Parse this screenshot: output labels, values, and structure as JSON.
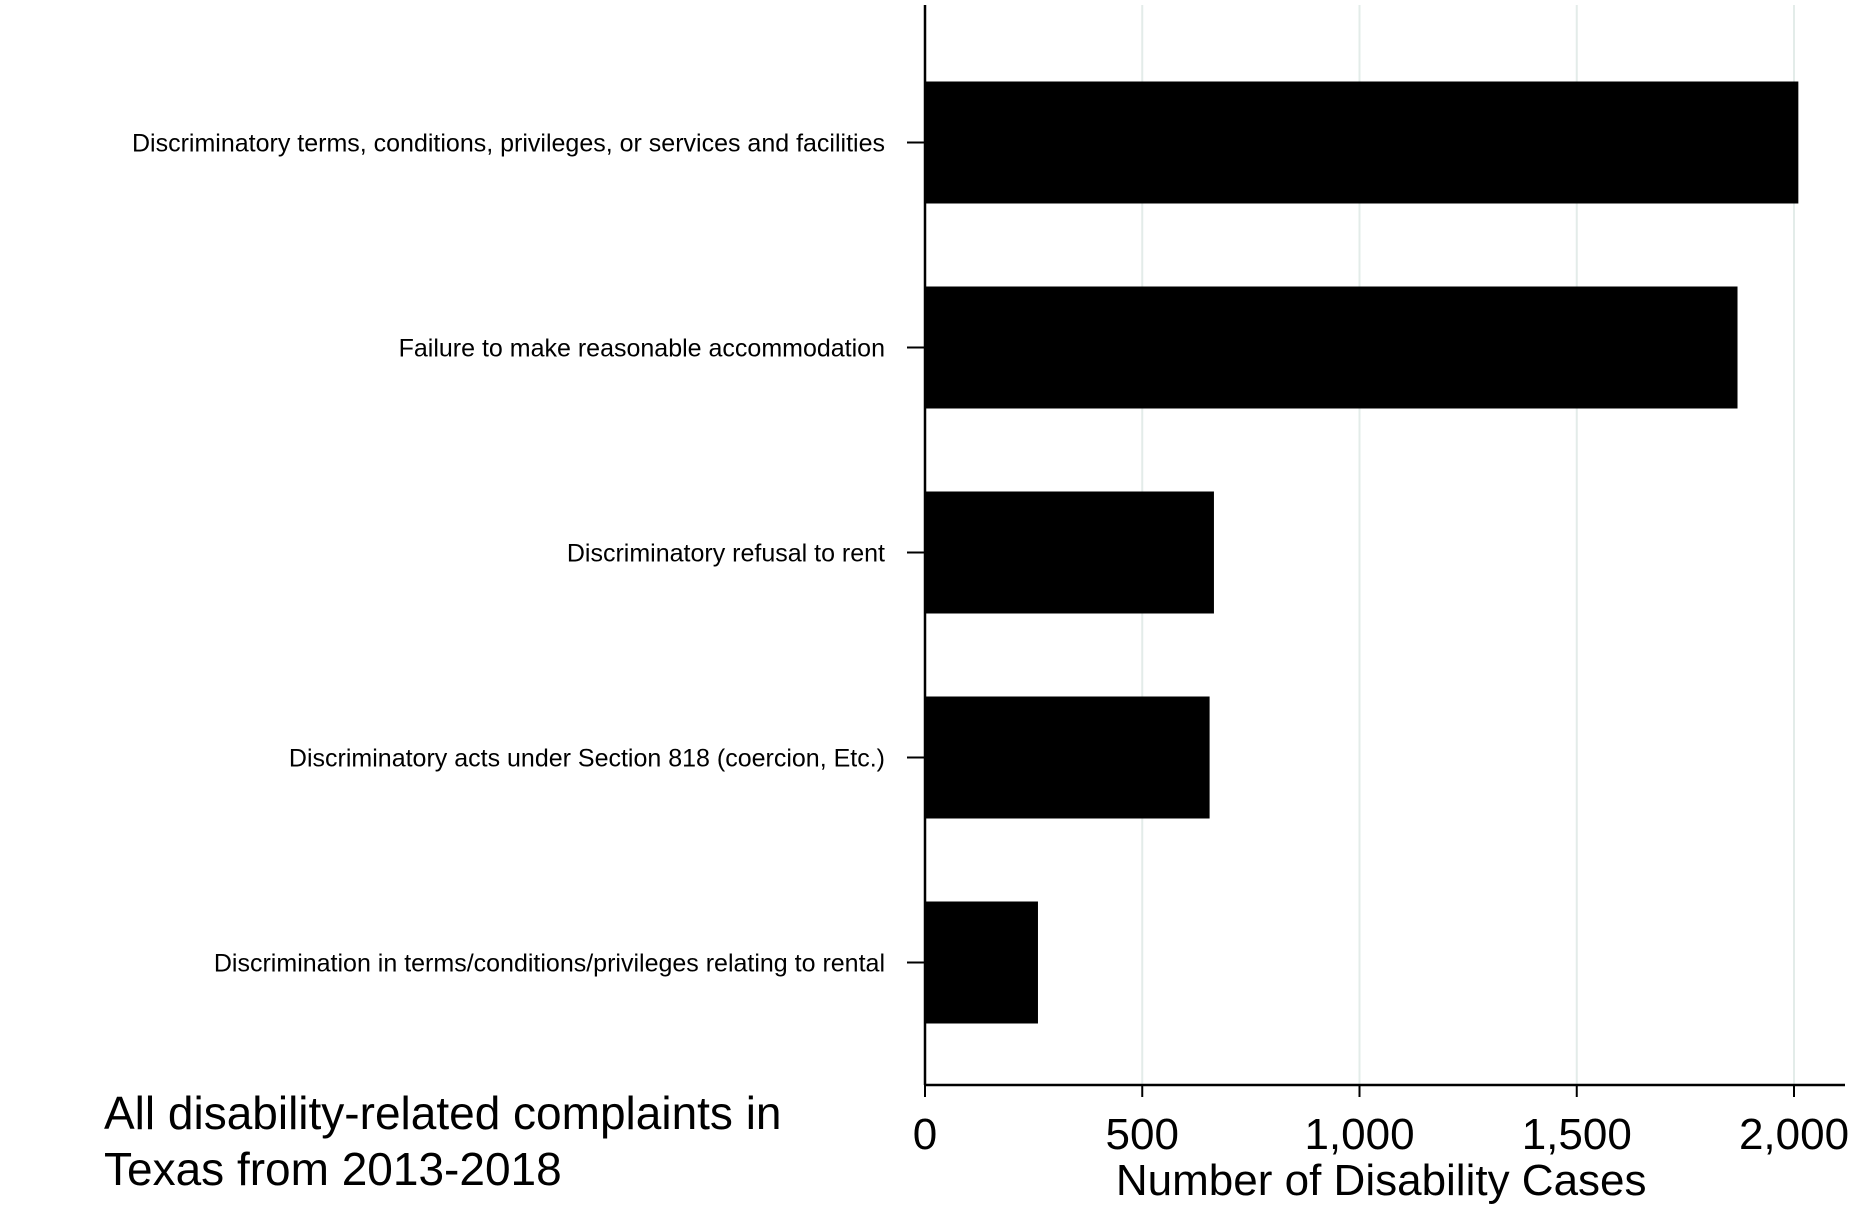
{
  "chart_data": {
    "type": "bar",
    "orientation": "horizontal",
    "categories": [
      "Discriminatory terms, conditions, privileges, or services and facilities",
      "Failure to make reasonable accommodation",
      "Discriminatory refusal to rent",
      "Discriminatory acts under Section 818 (coercion, Etc.)",
      "Discrimination in terms/conditions/privileges relating to rental"
    ],
    "values": [
      2010,
      1870,
      665,
      655,
      260
    ],
    "xlabel": "Number of Disability Cases",
    "xlim": [
      0,
      2100
    ],
    "xticks": [
      0,
      500,
      1000,
      1500,
      2000
    ],
    "xtick_labels": [
      "0",
      "500",
      "1,000",
      "1,500",
      "2,000"
    ],
    "grid": "vertical",
    "bar_color": "#000000",
    "grid_color": "#e3ece9"
  },
  "caption": {
    "line1": "All disability-related complaints in",
    "line2": "Texas from 2013-2018"
  }
}
